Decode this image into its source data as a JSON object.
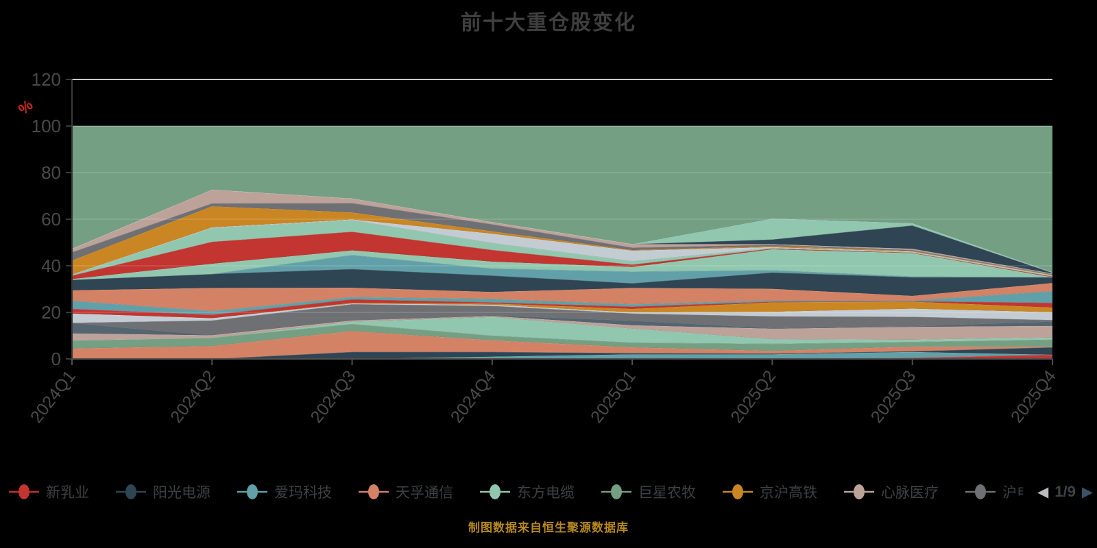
{
  "title": "前十大重仓股变化",
  "footer": "制图数据来自恒生聚源数据库",
  "colors": {
    "background": "#000000",
    "title_text": "#3f3f3f",
    "axis_label": "#4a4a4a",
    "axis_line_y": "#3a3a3a",
    "axis_line_x": "#4f4f4f",
    "grid_line": "rgba(255,255,255,0.16)",
    "top_boundary_line": "#c9c9c9",
    "band_edge_line": "rgba(255,255,255,0.25)",
    "percent_label": "#d02a21",
    "footer_text": "#b8891f",
    "pager_prev": "#b9bdc0",
    "pager_next": "#3b5266",
    "pager_text": "#3e4246"
  },
  "legend": {
    "items": [
      {
        "label": "新乳业",
        "color": "#c23531"
      },
      {
        "label": "阳光电源",
        "color": "#2f4554"
      },
      {
        "label": "爱玛科技",
        "color": "#61a0a8"
      },
      {
        "label": "天孚通信",
        "color": "#d48265"
      },
      {
        "label": "东方电缆",
        "color": "#91c7ae"
      },
      {
        "label": "巨星农牧",
        "color": "#749f83"
      },
      {
        "label": "京沪高铁",
        "color": "#ca8622"
      },
      {
        "label": "心脉医疗",
        "color": "#bda29a"
      },
      {
        "label": "沪电股份",
        "color": "#6e7074"
      }
    ],
    "pager": {
      "prev": "◀",
      "text": "1/9",
      "next": "▶"
    }
  },
  "chart_data": {
    "type": "area",
    "title": "前十大重仓股变化",
    "x": [
      "2024Q1",
      "2024Q2",
      "2024Q3",
      "2024Q4",
      "2025Q1",
      "2025Q2",
      "2025Q3",
      "2025Q4"
    ],
    "ylabel": "%",
    "ylim": [
      0,
      120
    ],
    "yticks": [
      0,
      20,
      40,
      60,
      80,
      100,
      120
    ],
    "grid": true,
    "legend_position": "bottom",
    "stack_total": 100,
    "fill_series": {
      "name": "band-top-sage",
      "color": "#749f83",
      "fill_to": 100
    },
    "series": [
      {
        "name": "band-01-red",
        "color": "#c23531",
        "values": [
          0,
          0,
          0,
          0,
          0,
          0,
          0.5,
          1.8
        ]
      },
      {
        "name": "band-02-teal",
        "color": "#61a0a8",
        "values": [
          0,
          0,
          0,
          1,
          2,
          2,
          2.5,
          0
        ]
      },
      {
        "name": "band-03-navy",
        "color": "#2f4554",
        "values": [
          0,
          0,
          3,
          2,
          0.5,
          0.3,
          0.3,
          3.2
        ]
      },
      {
        "name": "band-04-salmon",
        "color": "#d48265",
        "values": [
          4.5,
          5.6,
          9,
          5,
          2.5,
          1.2,
          2,
          0.3
        ]
      },
      {
        "name": "band-05-sage",
        "color": "#749f83",
        "values": [
          3.5,
          3.5,
          3,
          2,
          2,
          3,
          2,
          3
        ]
      },
      {
        "name": "band-06-mint",
        "color": "#91c7ae",
        "values": [
          0,
          0,
          1,
          8,
          6,
          2,
          1,
          0.9
        ]
      },
      {
        "name": "band-07-mauve",
        "color": "#bda29a",
        "values": [
          3,
          1.1,
          0.5,
          0.5,
          1.5,
          4.5,
          5.5,
          5
        ]
      },
      {
        "name": "band-08-slate",
        "color": "#546570",
        "values": [
          4.5,
          0,
          0,
          0.3,
          2,
          0.3,
          0.3,
          2
        ]
      },
      {
        "name": "band-09-gray",
        "color": "#6e7074",
        "values": [
          0,
          6.3,
          7,
          4,
          3,
          5,
          4,
          0.5
        ]
      },
      {
        "name": "band-10-white",
        "color": "#c4ccd3",
        "values": [
          4,
          1,
          0.3,
          0.5,
          0.5,
          2,
          3.5,
          3.4
        ]
      },
      {
        "name": "band-11-orange",
        "color": "#ca8622",
        "values": [
          0,
          0,
          0.3,
          0.5,
          1.5,
          4,
          3,
          2
        ]
      },
      {
        "name": "band-12-red",
        "color": "#c23531",
        "values": [
          2,
          1.5,
          1.5,
          0.5,
          1,
          0.3,
          0.2,
          2
        ]
      },
      {
        "name": "band-13-teal",
        "color": "#61a0a8",
        "values": [
          3.5,
          1.5,
          1,
          1.5,
          1,
          0.5,
          0.3,
          5
        ]
      },
      {
        "name": "band-14-salmon",
        "color": "#d48265",
        "values": [
          4.5,
          10,
          4,
          3,
          7,
          5,
          2,
          3.5
        ]
      },
      {
        "name": "band-15-navy",
        "color": "#2f4554",
        "values": [
          4.5,
          6,
          8,
          7,
          2,
          7,
          8,
          2.5
        ]
      },
      {
        "name": "band-16-teal",
        "color": "#61a0a8",
        "values": [
          0,
          0,
          6,
          3,
          5,
          1,
          0.3,
          0
        ]
      },
      {
        "name": "band-17-mint",
        "color": "#91c7ae",
        "values": [
          0.3,
          4.4,
          2,
          3,
          2,
          9,
          10,
          0
        ]
      },
      {
        "name": "band-18-red",
        "color": "#c23531",
        "values": [
          1.5,
          9.4,
          8,
          5,
          1,
          0.3,
          0.2,
          0.3
        ]
      },
      {
        "name": "band-19-mint",
        "color": "#91c7ae",
        "values": [
          0.3,
          5.9,
          5,
          3,
          1.5,
          0.3,
          0.2,
          0.2
        ]
      },
      {
        "name": "band-20-white",
        "color": "#c4ccd3",
        "values": [
          0.2,
          0.3,
          0.3,
          4,
          4.5,
          0.3,
          0.3,
          0.3
        ]
      },
      {
        "name": "band-21-orange",
        "color": "#ca8622",
        "values": [
          6,
          9.1,
          3,
          1,
          0.3,
          0.5,
          0.3,
          0.2
        ]
      },
      {
        "name": "band-22-gray",
        "color": "#6e7074",
        "values": [
          3.5,
          1.2,
          4,
          3,
          1,
          0.5,
          0.4,
          0.3
        ]
      },
      {
        "name": "band-23-mauve",
        "color": "#bda29a",
        "values": [
          1.5,
          5.9,
          2,
          1,
          1.5,
          0.3,
          0.5,
          0.3
        ]
      },
      {
        "name": "band-24-navy",
        "color": "#2f4554",
        "values": [
          0,
          0,
          0,
          0,
          0,
          2,
          10,
          0.3
        ]
      },
      {
        "name": "band-25-mint",
        "color": "#91c7ae",
        "values": [
          0,
          0,
          0,
          0,
          0,
          9,
          1,
          0.3
        ]
      }
    ]
  }
}
